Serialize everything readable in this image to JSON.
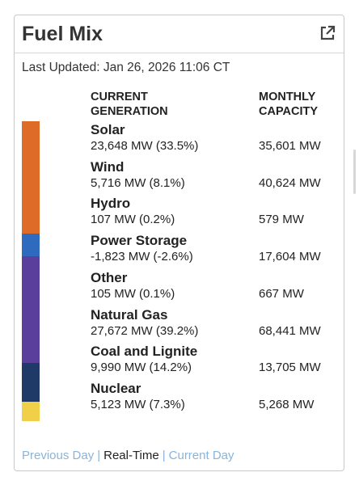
{
  "card": {
    "title": "Fuel Mix",
    "external_icon": "external-link-icon",
    "last_updated": "Last Updated: Jan 26, 2026 11:06 CT"
  },
  "columns": {
    "current_line1": "CURRENT",
    "current_line2": "GENERATION",
    "monthly_line1": "MONTHLY",
    "monthly_line2": "CAPACITY"
  },
  "fuels": [
    {
      "name": "Solar",
      "generation": "23,648 MW (33.5%)",
      "capacity": "35,601 MW"
    },
    {
      "name": "Wind",
      "generation": "5,716 MW (8.1%)",
      "capacity": "40,624 MW"
    },
    {
      "name": "Hydro",
      "generation": "107 MW (0.2%)",
      "capacity": "579 MW"
    },
    {
      "name": "Power Storage",
      "generation": "-1,823 MW (-2.6%)",
      "capacity": "17,604 MW"
    },
    {
      "name": "Other",
      "generation": "105 MW (0.1%)",
      "capacity": "667 MW"
    },
    {
      "name": "Natural Gas",
      "generation": "27,672 MW (39.2%)",
      "capacity": "68,441 MW"
    },
    {
      "name": "Coal and Lignite",
      "generation": "9,990 MW (14.2%)",
      "capacity": "13,705 MW"
    },
    {
      "name": "Nuclear",
      "generation": "5,123 MW (7.3%)",
      "capacity": "5,268 MW"
    }
  ],
  "stack_bar": {
    "segments": [
      {
        "color": "#de6b28",
        "share": 41.6
      },
      {
        "color": "#2e6bbf",
        "share": 0.2
      },
      {
        "color": "#5a3f9c",
        "share": 39.3
      },
      {
        "color": "#1f3a66",
        "share": 14.2
      },
      {
        "color": "#f0d048",
        "share": 7.3
      }
    ]
  },
  "footer": {
    "previous_day": "Previous Day",
    "separator": "|",
    "real_time": "Real-Time",
    "current_day": "Current Day"
  }
}
